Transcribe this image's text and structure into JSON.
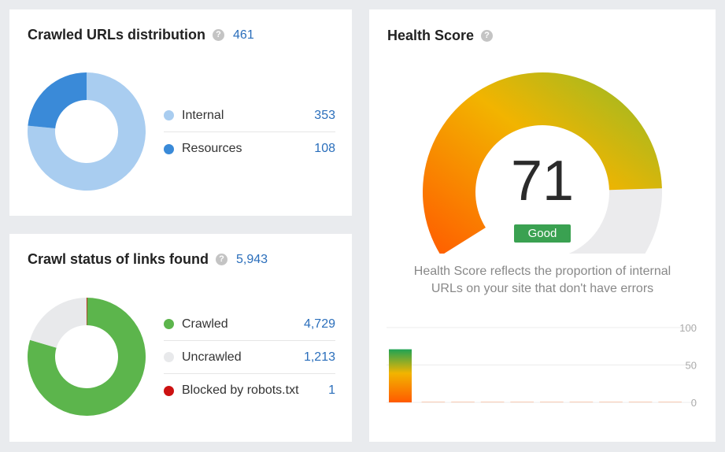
{
  "crawled_urls": {
    "title": "Crawled URLs distribution",
    "help_icon": "?",
    "total": "461",
    "items": [
      {
        "label": "Internal",
        "value": "353",
        "color": "#a9cdf0"
      },
      {
        "label": "Resources",
        "value": "108",
        "color": "#3a8ad8"
      }
    ]
  },
  "crawl_status": {
    "title": "Crawl status of links found",
    "help_icon": "?",
    "total": "5,943",
    "items": [
      {
        "label": "Crawled",
        "value": "4,729",
        "color": "#5cb54c"
      },
      {
        "label": "Uncrawled",
        "value": "1,213",
        "color": "#e8e9eb"
      },
      {
        "label": "Blocked by robots.txt",
        "value": "1",
        "color": "#cc1111"
      }
    ]
  },
  "health": {
    "title": "Health Score",
    "help_icon": "?",
    "score": "71",
    "status": "Good",
    "description_line1": "Health Score reflects the proportion of internal",
    "description_line2": "URLs on your site that don't have errors",
    "score_value": 71,
    "score_max": 100,
    "colors": {
      "gauge_start": "#ff5a00",
      "gauge_mid": "#f2b400",
      "gauge_end": "#8dbb2a",
      "track": "#ebebed",
      "status": "#3aa151"
    }
  },
  "chart_data": [
    {
      "type": "pie",
      "name": "crawled-urls-donut",
      "labels": [
        "Internal",
        "Resources"
      ],
      "values": [
        353,
        108
      ],
      "colors": [
        "#a9cdf0",
        "#3a8ad8"
      ]
    },
    {
      "type": "pie",
      "name": "crawl-status-donut",
      "labels": [
        "Crawled",
        "Uncrawled",
        "Blocked by robots.txt"
      ],
      "values": [
        4729,
        1213,
        1
      ],
      "colors": [
        "#5cb54c",
        "#e8e9eb",
        "#cc1111"
      ]
    },
    {
      "type": "bar",
      "name": "health-history",
      "values": [
        71,
        0,
        0,
        0,
        0,
        0,
        0,
        0,
        0,
        0
      ],
      "ylim": [
        0,
        100
      ],
      "yticks": [
        "100",
        "50",
        "0"
      ]
    }
  ]
}
